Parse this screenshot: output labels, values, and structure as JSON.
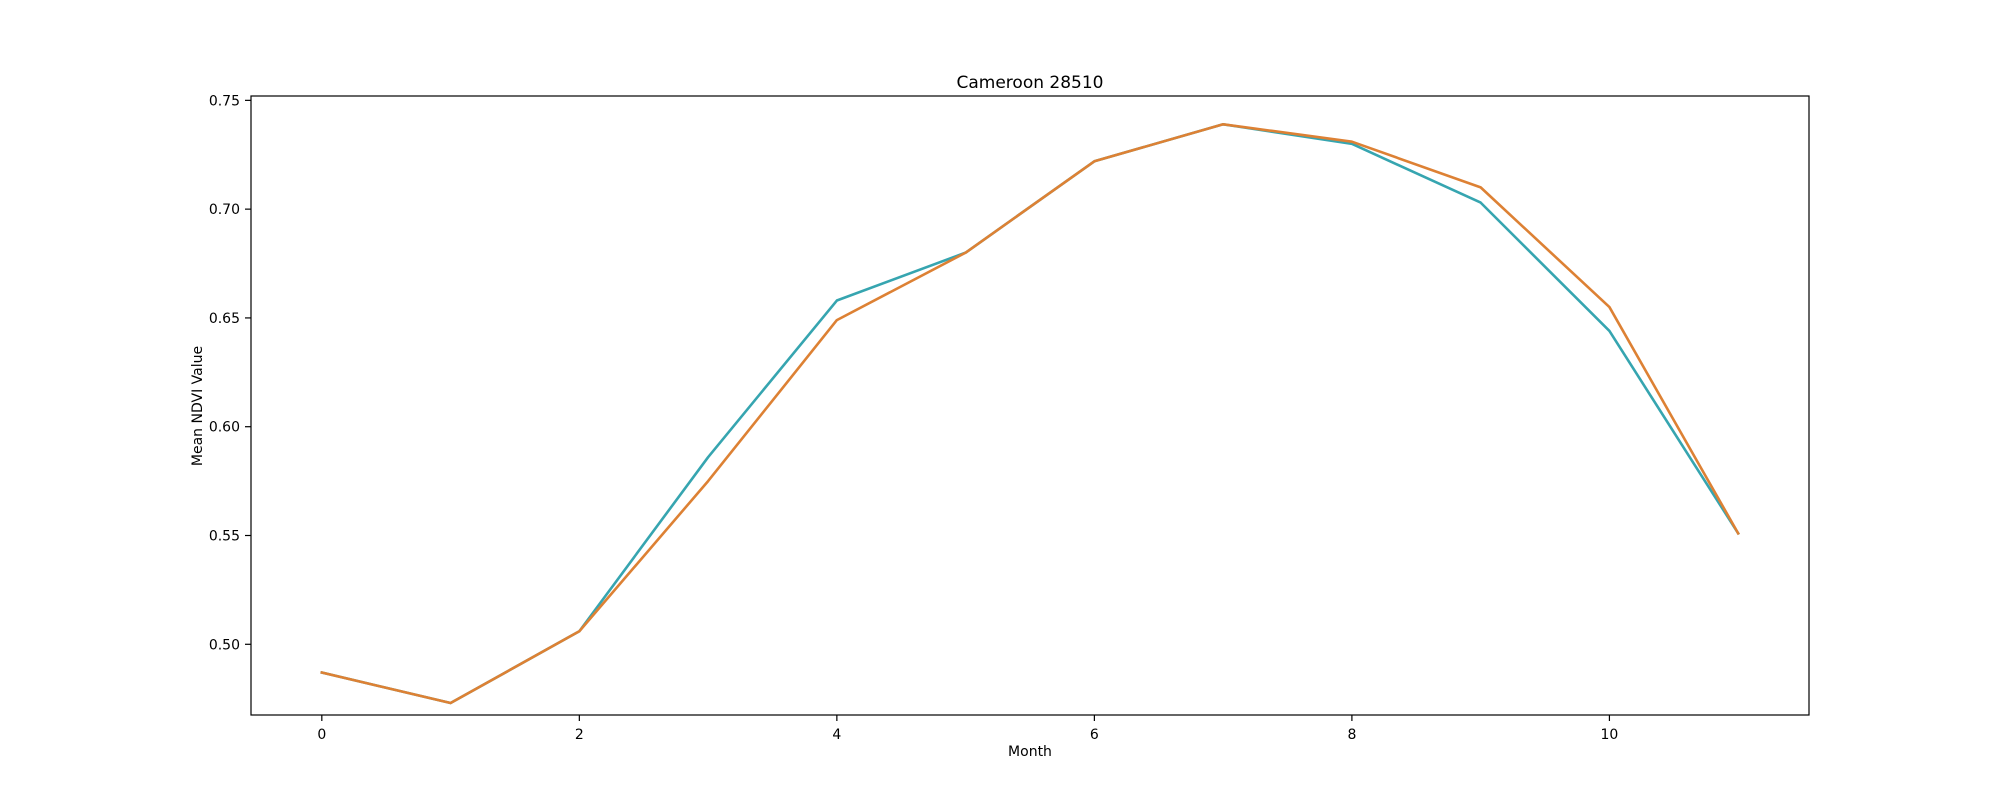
{
  "chart_data": {
    "type": "line",
    "title": "Cameroon 28510",
    "xlabel": "Month",
    "ylabel": "Mean NDVI Value",
    "x": [
      0,
      1,
      2,
      3,
      4,
      5,
      6,
      7,
      8,
      9,
      10,
      11
    ],
    "xlim": [
      -0.55,
      11.55
    ],
    "ylim": [
      0.4675,
      0.752
    ],
    "x_ticks": [
      0,
      2,
      4,
      6,
      8,
      10
    ],
    "x_tick_labels": [
      "0",
      "2",
      "4",
      "6",
      "8",
      "10"
    ],
    "y_ticks": [
      0.5,
      0.55,
      0.6,
      0.65,
      0.7,
      0.75
    ],
    "y_tick_labels": [
      "0.50",
      "0.55",
      "0.60",
      "0.65",
      "0.70",
      "0.75"
    ],
    "grid": false,
    "legend": "none",
    "series": [
      {
        "color": "#36a5b0",
        "values": [
          0.487,
          0.473,
          0.506,
          0.586,
          0.658,
          0.68,
          0.722,
          0.739,
          0.73,
          0.703,
          0.644,
          0.551
        ]
      },
      {
        "color": "#dd8134",
        "values": [
          0.487,
          0.473,
          0.506,
          0.575,
          0.649,
          0.68,
          0.722,
          0.739,
          0.731,
          0.71,
          0.655,
          0.551
        ]
      }
    ]
  }
}
